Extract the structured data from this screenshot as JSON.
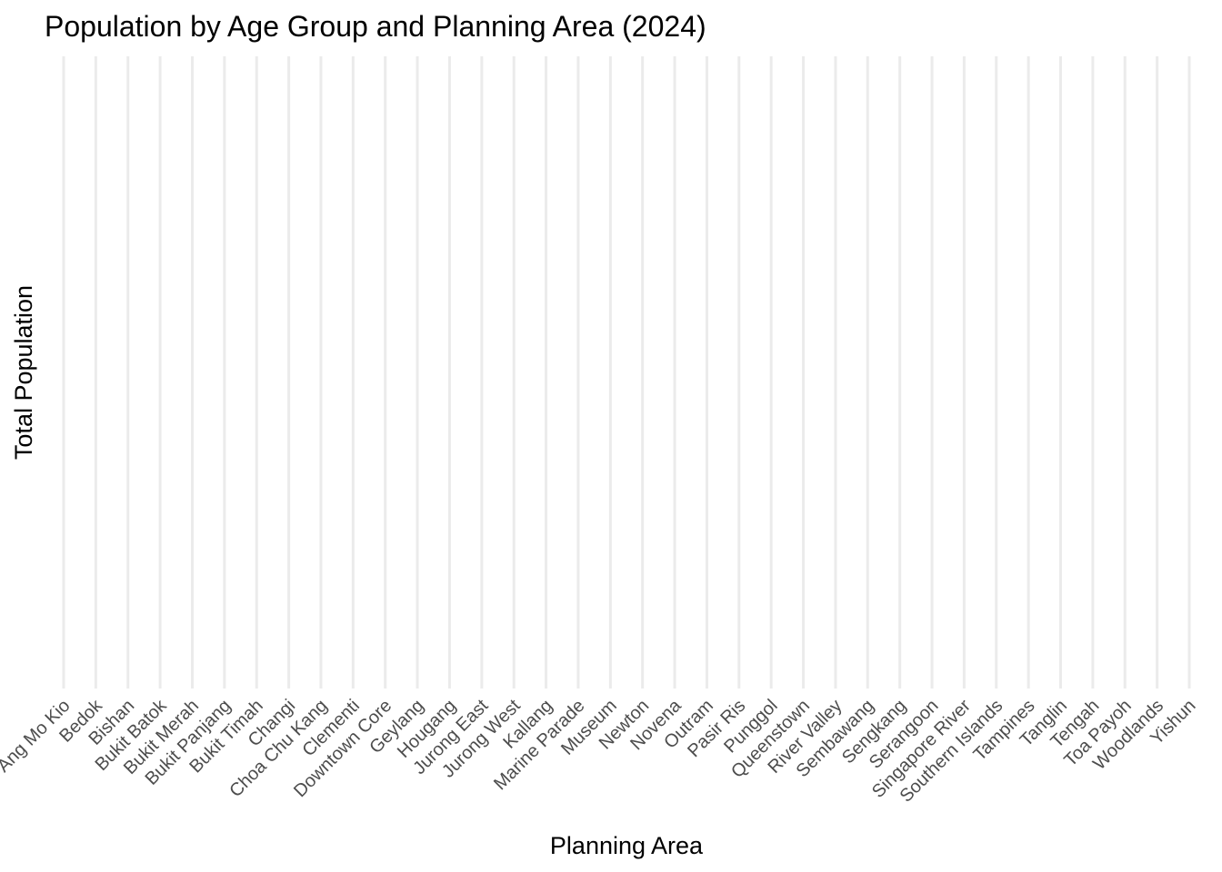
{
  "chart_data": {
    "type": "bar",
    "title": "Population by Age Group and Planning Area (2024)",
    "xlabel": "Planning Area",
    "ylabel": "Total Population",
    "categories": [
      "Ang Mo Kio",
      "Bedok",
      "Bishan",
      "Bukit Batok",
      "Bukit Merah",
      "Bukit Panjang",
      "Bukit Timah",
      "Changi",
      "Choa Chu Kang",
      "Clementi",
      "Downtown Core",
      "Geylang",
      "Hougang",
      "Jurong East",
      "Jurong West",
      "Kallang",
      "Marine Parade",
      "Museum",
      "Newton",
      "Novena",
      "Outram",
      "Pasir Ris",
      "Punggol",
      "Queenstown",
      "River Valley",
      "Sembawang",
      "Sengkang",
      "Serangoon",
      "Singapore River",
      "Southern Islands",
      "Tampines",
      "Tanglin",
      "Tengah",
      "Toa Payoh",
      "Woodlands",
      "Yishun"
    ],
    "series": [],
    "grid": true,
    "gridlines": "vertical only",
    "tick_label_rotation": 45,
    "colors": {
      "background": "#ffffff",
      "gridline": "#ebebeb",
      "tick_label": "#4d4d4d",
      "text": "#000000"
    }
  }
}
